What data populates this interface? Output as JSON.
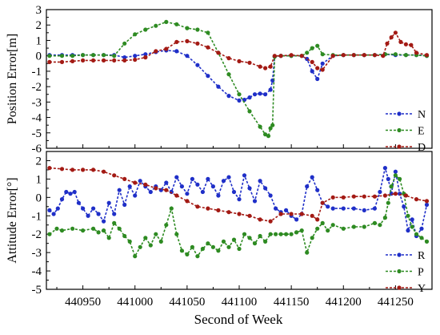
{
  "chart_data": [
    {
      "type": "line",
      "ylabel": "Position Error[m]",
      "ylim": [
        -6,
        3
      ],
      "yticks": [
        3,
        2,
        1,
        0,
        -1,
        -2,
        -3,
        -4,
        -5,
        -6
      ],
      "xlim": [
        440915,
        441285
      ],
      "grid": false,
      "legend_position": "bottom-right",
      "series": [
        {
          "name": "N",
          "color": "#1f2fc8",
          "x": [
            440918,
            440930,
            440940,
            440950,
            440960,
            440970,
            440980,
            440990,
            441000,
            441010,
            441020,
            441030,
            441040,
            441050,
            441060,
            441070,
            441080,
            441090,
            441100,
            441105,
            441110,
            441115,
            441120,
            441125,
            441130,
            441132,
            441134,
            441140,
            441150,
            441160,
            441165,
            441170,
            441175,
            441180,
            441190,
            441200,
            441210,
            441220,
            441230,
            441240,
            441250,
            441260,
            441270,
            441280
          ],
          "y": [
            0.05,
            0.05,
            0.05,
            0.05,
            0.05,
            0.05,
            0.05,
            -0.1,
            0.0,
            0.1,
            0.25,
            0.35,
            0.3,
            0.0,
            -0.6,
            -1.3,
            -2.0,
            -2.6,
            -2.9,
            -2.85,
            -2.7,
            -2.5,
            -2.45,
            -2.5,
            -2.2,
            -1.6,
            -0.05,
            0.0,
            0.0,
            0.0,
            -0.2,
            -1.0,
            -1.5,
            -0.5,
            0.0,
            0.05,
            0.05,
            0.05,
            0.05,
            0.1,
            0.05,
            0.05,
            0.05,
            0.0
          ]
        },
        {
          "name": "E",
          "color": "#2e8b22",
          "x": [
            440918,
            440930,
            440940,
            440950,
            440960,
            440970,
            440980,
            440990,
            441000,
            441010,
            441020,
            441030,
            441040,
            441050,
            441060,
            441070,
            441080,
            441090,
            441100,
            441110,
            441120,
            441125,
            441128,
            441130,
            441132,
            441134,
            441140,
            441150,
            441160,
            441165,
            441170,
            441175,
            441180,
            441190,
            441200,
            441210,
            441220,
            441230,
            441240,
            441250,
            441260,
            441270,
            441280
          ],
          "y": [
            0.0,
            0.0,
            0.0,
            0.05,
            0.05,
            0.05,
            0.0,
            0.8,
            1.4,
            1.7,
            1.95,
            2.2,
            2.05,
            1.8,
            1.7,
            1.5,
            0.2,
            -1.2,
            -2.5,
            -3.6,
            -4.6,
            -5.1,
            -5.2,
            -4.7,
            -4.5,
            -0.05,
            0.0,
            0.0,
            0.0,
            0.2,
            0.5,
            0.65,
            0.1,
            0.05,
            0.05,
            0.05,
            0.05,
            0.05,
            0.1,
            0.1,
            0.05,
            0.05,
            0.0
          ]
        },
        {
          "name": "D",
          "color": "#a31a14",
          "x": [
            440918,
            440930,
            440940,
            440950,
            440960,
            440970,
            440980,
            440990,
            441000,
            441010,
            441020,
            441030,
            441040,
            441050,
            441060,
            441070,
            441080,
            441090,
            441100,
            441110,
            441120,
            441125,
            441130,
            441134,
            441140,
            441150,
            441160,
            441170,
            441175,
            441180,
            441190,
            441200,
            441210,
            441220,
            441230,
            441238,
            441242,
            441246,
            441250,
            441255,
            441260,
            441265,
            441270,
            441280
          ],
          "y": [
            -0.4,
            -0.4,
            -0.35,
            -0.3,
            -0.3,
            -0.3,
            -0.3,
            -0.3,
            -0.25,
            -0.1,
            0.3,
            0.45,
            0.9,
            0.95,
            0.8,
            0.55,
            0.2,
            -0.15,
            -0.35,
            -0.45,
            -0.7,
            -0.8,
            -0.7,
            0.0,
            0.0,
            0.05,
            0.0,
            -0.4,
            -0.8,
            -0.9,
            0.0,
            0.05,
            0.05,
            0.05,
            0.05,
            0.0,
            0.8,
            1.2,
            1.5,
            0.9,
            0.75,
            0.7,
            0.2,
            0.05
          ]
        }
      ]
    },
    {
      "type": "line",
      "xlabel": "Second of Week",
      "ylabel": "Attitude Error[°]",
      "ylim": [
        -5,
        2.5
      ],
      "yticks": [
        2,
        1,
        0,
        -1,
        -2,
        -3,
        -4,
        -5
      ],
      "xlim": [
        440915,
        441285
      ],
      "xticks": [
        440950,
        441000,
        441050,
        441100,
        441150,
        441200,
        441250
      ],
      "grid": false,
      "legend_position": "bottom-right",
      "series": [
        {
          "name": "R",
          "color": "#1f2fc8",
          "x": [
            440918,
            440922,
            440926,
            440930,
            440934,
            440938,
            440942,
            440946,
            440950,
            440955,
            440960,
            440965,
            440970,
            440975,
            440980,
            440985,
            440990,
            440995,
            441000,
            441005,
            441010,
            441015,
            441020,
            441025,
            441030,
            441035,
            441040,
            441045,
            441050,
            441055,
            441060,
            441065,
            441070,
            441075,
            441080,
            441085,
            441090,
            441095,
            441100,
            441105,
            441110,
            441115,
            441120,
            441125,
            441130,
            441135,
            441140,
            441145,
            441150,
            441155,
            441160,
            441165,
            441170,
            441175,
            441180,
            441185,
            441190,
            441200,
            441210,
            441220,
            441230,
            441235,
            441240,
            441243,
            441246,
            441250,
            441254,
            441258,
            441262,
            441266,
            441270,
            441275,
            441280
          ],
          "y": [
            -0.7,
            -0.9,
            -0.6,
            -0.1,
            0.3,
            0.2,
            0.3,
            -0.3,
            -0.6,
            -1.0,
            -0.6,
            -0.9,
            -1.3,
            -0.3,
            -0.9,
            0.4,
            -0.4,
            0.6,
            0.1,
            0.9,
            0.6,
            0.3,
            0.6,
            0.4,
            0.8,
            0.3,
            1.1,
            0.6,
            0.2,
            1.0,
            0.7,
            0.3,
            1.0,
            0.6,
            0.1,
            0.9,
            1.1,
            0.3,
            -0.1,
            1.2,
            0.5,
            -0.2,
            0.9,
            0.5,
            0.1,
            -0.6,
            -0.8,
            -0.7,
            -1.0,
            -1.2,
            -0.9,
            0.6,
            1.1,
            0.4,
            -0.3,
            -0.5,
            -0.6,
            -0.6,
            -0.6,
            -0.7,
            -0.6,
            0.3,
            1.6,
            1.0,
            0.2,
            1.4,
            0.2,
            -0.5,
            -1.8,
            -1.2,
            -2.1,
            -1.7,
            -0.4
          ]
        },
        {
          "name": "P",
          "color": "#2e8b22",
          "x": [
            440918,
            440925,
            440930,
            440940,
            440950,
            440960,
            440965,
            440970,
            440975,
            440980,
            440985,
            440990,
            440995,
            441000,
            441005,
            441010,
            441015,
            441020,
            441025,
            441030,
            441035,
            441040,
            441045,
            441050,
            441055,
            441060,
            441065,
            441070,
            441075,
            441080,
            441085,
            441090,
            441095,
            441100,
            441105,
            441110,
            441115,
            441120,
            441125,
            441130,
            441135,
            441140,
            441145,
            441150,
            441155,
            441160,
            441165,
            441170,
            441175,
            441180,
            441185,
            441190,
            441200,
            441210,
            441220,
            441230,
            441235,
            441240,
            441243,
            441246,
            441250,
            441254,
            441258,
            441262,
            441266,
            441270,
            441275,
            441280
          ],
          "y": [
            -2.0,
            -1.7,
            -1.8,
            -1.7,
            -1.8,
            -1.7,
            -1.9,
            -1.8,
            -2.2,
            -1.4,
            -1.7,
            -2.1,
            -2.4,
            -3.2,
            -2.7,
            -2.2,
            -2.6,
            -2.0,
            -2.4,
            -1.5,
            -0.6,
            -2.0,
            -2.9,
            -3.1,
            -2.7,
            -3.2,
            -2.8,
            -2.5,
            -2.7,
            -2.9,
            -2.4,
            -2.7,
            -2.3,
            -2.8,
            -2.0,
            -2.2,
            -2.5,
            -2.1,
            -2.4,
            -2.0,
            -2.0,
            -2.0,
            -2.0,
            -2.0,
            -1.9,
            -1.8,
            -3.0,
            -2.2,
            -1.7,
            -1.4,
            -1.8,
            -1.5,
            -1.7,
            -1.6,
            -1.6,
            -1.4,
            -1.5,
            -1.1,
            -0.3,
            0.6,
            1.2,
            1.0,
            0.2,
            -1.0,
            -1.6,
            -2.0,
            -2.2,
            -2.4
          ]
        },
        {
          "name": "Y",
          "color": "#a31a14",
          "x": [
            440918,
            440930,
            440940,
            440950,
            440960,
            440970,
            440980,
            440990,
            441000,
            441010,
            441020,
            441030,
            441040,
            441050,
            441060,
            441070,
            441080,
            441090,
            441100,
            441110,
            441120,
            441130,
            441140,
            441150,
            441160,
            441170,
            441175,
            441180,
            441190,
            441200,
            441210,
            441220,
            441230,
            441240,
            441250,
            441260,
            441270,
            441280
          ],
          "y": [
            1.6,
            1.55,
            1.5,
            1.5,
            1.5,
            1.4,
            1.2,
            1.0,
            0.8,
            0.7,
            0.5,
            0.4,
            0.1,
            -0.2,
            -0.5,
            -0.6,
            -0.7,
            -0.8,
            -0.9,
            -1.0,
            -1.2,
            -1.3,
            -0.9,
            -0.9,
            -0.9,
            -1.0,
            -1.2,
            -0.3,
            0.0,
            0.0,
            0.05,
            0.05,
            0.05,
            0.1,
            0.2,
            0.1,
            -0.1,
            -0.2
          ]
        }
      ]
    }
  ]
}
